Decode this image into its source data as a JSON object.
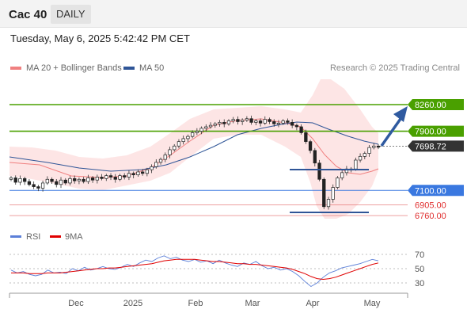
{
  "header": {
    "instrument": "Cac 40",
    "timeframe": "DAILY"
  },
  "timestamp": "Tuesday, May 6, 2025 5:42:42 PM CET",
  "legend": {
    "ma20": {
      "label": "MA 20 + Bollinger Bands",
      "color": "#f08080"
    },
    "ma50": {
      "label": "MA 50",
      "color": "#2f5597"
    }
  },
  "credit": "Research © 2025 Trading Central",
  "rsi_legend": {
    "rsi": {
      "label": "RSI",
      "color": "#5b7fd8"
    },
    "ma9": {
      "label": "9MA",
      "color": "#e00000"
    }
  },
  "chart_data": [
    {
      "type": "candlestick",
      "title": "Cac 40",
      "ylim": [
        6700,
        8400
      ],
      "x_ticks": [
        "Dec",
        "2025",
        "Feb",
        "Mar",
        "Apr",
        "May"
      ],
      "levels": [
        {
          "label": "8260.00",
          "value": 8260,
          "kind": "resistance",
          "color": "#4aa000"
        },
        {
          "label": "7900.00",
          "value": 7900,
          "kind": "resistance",
          "color": "#4aa000"
        },
        {
          "label": "7698.72",
          "value": 7698.72,
          "kind": "last-price",
          "color": "#333333"
        },
        {
          "label": "7100.00",
          "value": 7100,
          "kind": "pivot",
          "color": "#3a78e0"
        },
        {
          "label": "6905.00",
          "value": 6905,
          "kind": "support",
          "color": "#e06060"
        },
        {
          "label": "6760.00",
          "value": 6760,
          "kind": "support",
          "color": "#e06060"
        }
      ],
      "close_series": [
        7270,
        7210,
        7260,
        7220,
        7180,
        7150,
        7130,
        7200,
        7250,
        7220,
        7180,
        7240,
        7200,
        7260,
        7230,
        7250,
        7220,
        7270,
        7240,
        7280,
        7260,
        7300,
        7280,
        7250,
        7300,
        7280,
        7330,
        7310,
        7350,
        7330,
        7380,
        7420,
        7480,
        7520,
        7580,
        7650,
        7700,
        7760,
        7800,
        7830,
        7880,
        7900,
        7940,
        7960,
        7980,
        8000,
        8020,
        8000,
        8040,
        8060,
        8030,
        8050,
        8070,
        8020,
        8040,
        8010,
        8060,
        8030,
        8000,
        8010,
        8040,
        8020,
        7980,
        7960,
        7880,
        7760,
        7640,
        7470,
        7250,
        6880,
        6980,
        7140,
        7270,
        7340,
        7390,
        7390,
        7510,
        7560,
        7600,
        7680,
        7700,
        7690
      ]
    },
    {
      "type": "line",
      "title": "RSI",
      "ylim": [
        20,
        80
      ],
      "y_ticks": [
        "70",
        "50",
        "30"
      ],
      "x_ticks": [
        "Dec",
        "2025",
        "Feb",
        "Mar",
        "Apr",
        "May"
      ],
      "series": [
        {
          "name": "RSI",
          "values": [
            48,
            44,
            46,
            42,
            40,
            42,
            48,
            44,
            45,
            43,
            50,
            47,
            52,
            48,
            50,
            53,
            50,
            49,
            52,
            56,
            53,
            58,
            62,
            60,
            65,
            68,
            64,
            66,
            62,
            60,
            63,
            59,
            61,
            57,
            62,
            58,
            55,
            53,
            58,
            56,
            60,
            54,
            50,
            52,
            48,
            50,
            46,
            40,
            32,
            25,
            30,
            38,
            44,
            47,
            51,
            53,
            55,
            57,
            60,
            63,
            61
          ]
        },
        {
          "name": "9MA",
          "values": [
            44,
            44,
            44,
            43,
            43,
            43,
            44,
            44,
            44,
            45,
            46,
            47,
            48,
            49,
            50,
            50,
            51,
            51,
            52,
            53,
            54,
            55,
            56,
            57,
            59,
            61,
            62,
            63,
            63,
            63,
            63,
            62,
            61,
            60,
            60,
            59,
            58,
            57,
            57,
            56,
            56,
            55,
            54,
            53,
            52,
            51,
            49,
            46,
            43,
            39,
            36,
            35,
            36,
            38,
            41,
            44,
            47,
            50,
            53,
            56,
            58
          ]
        }
      ]
    }
  ]
}
